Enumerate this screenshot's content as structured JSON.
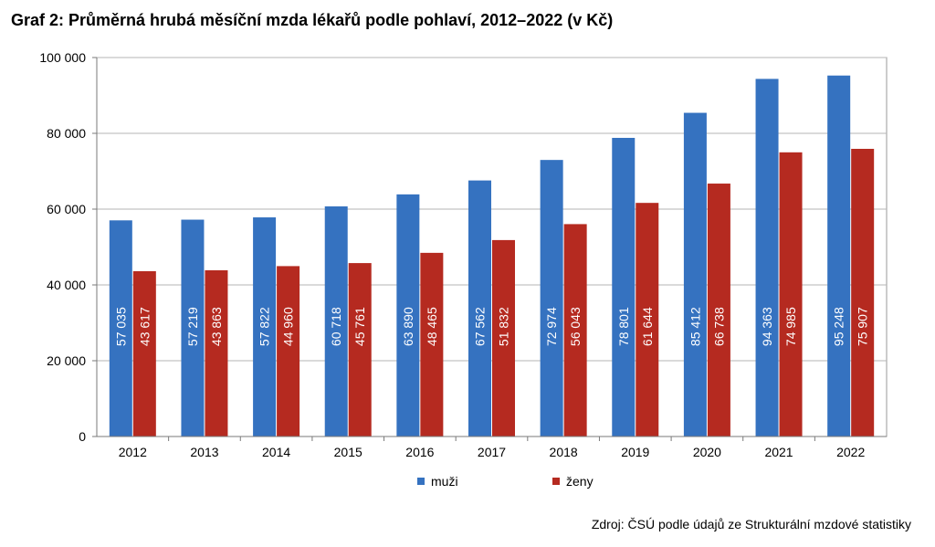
{
  "chart_data": {
    "type": "bar",
    "title": "Graf 2: Průměrná hrubá měsíční mzda lékařů podle pohlaví, 2012–2022 (v Kč)",
    "categories": [
      "2012",
      "2013",
      "2014",
      "2015",
      "2016",
      "2017",
      "2018",
      "2019",
      "2020",
      "2021",
      "2022"
    ],
    "series": [
      {
        "name": "muži",
        "color": "#3572c0",
        "values": [
          57035,
          57219,
          57822,
          60718,
          63890,
          67562,
          72974,
          78801,
          85412,
          94363,
          95248
        ],
        "labels": [
          "57 035",
          "57 219",
          "57 822",
          "60 718",
          "63 890",
          "67 562",
          "72 974",
          "78 801",
          "85 412",
          "94 363",
          "95 248"
        ]
      },
      {
        "name": "ženy",
        "color": "#b52a20",
        "values": [
          43617,
          43863,
          44960,
          45761,
          48465,
          51832,
          56043,
          61644,
          66738,
          74985,
          75907
        ],
        "labels": [
          "43 617",
          "43 863",
          "44 960",
          "45 761",
          "48 465",
          "51 832",
          "56 043",
          "61 644",
          "66 738",
          "74 985",
          "75 907"
        ]
      }
    ],
    "ylim": [
      0,
      100000
    ],
    "yticks": [
      0,
      20000,
      40000,
      60000,
      80000,
      100000
    ],
    "ytick_labels": [
      "0",
      "20 000",
      "40 000",
      "60 000",
      "80 000",
      "100 000"
    ],
    "grid": true,
    "legend_position": "bottom-center",
    "source": "Zdroj: ČSÚ podle údajů ze Strukturální mzdové statistiky"
  }
}
